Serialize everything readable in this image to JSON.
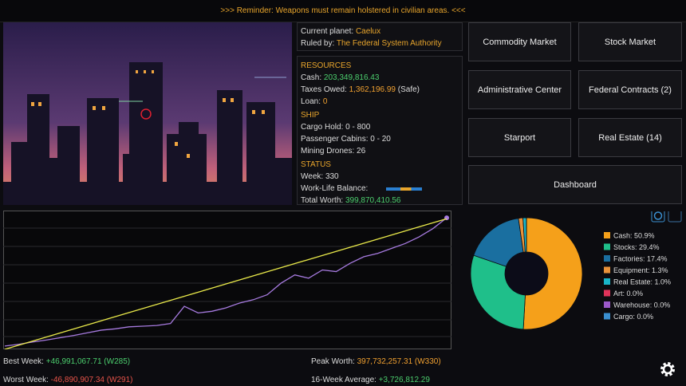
{
  "banner": ">>>  Reminder: Weapons must remain holstered in civilian areas.  <<<",
  "location": {
    "planet_label": "Current planet:",
    "planet": "Caelux",
    "ruler_label": "Ruled by:",
    "ruler": "The Federal System Authority"
  },
  "resources": {
    "title": "RESOURCES",
    "cash_label": "Cash:",
    "cash": "203,349,816.43",
    "taxes_label": "Taxes Owed:",
    "taxes": "1,362,196.99",
    "taxes_status": "(Safe)",
    "loan_label": "Loan:",
    "loan": "0"
  },
  "ship": {
    "title": "SHIP",
    "items": [
      "Cargo Hold: 0 - 800",
      "Passenger Cabins: 0 - 20",
      "Mining Drones: 26"
    ]
  },
  "status": {
    "title": "STATUS",
    "week": "Week: 330",
    "balance_label": "Work-Life Balance:",
    "worth_label": "Total Worth:",
    "worth": "399,870,410.56"
  },
  "buttons": [
    "Commodity Market",
    "Stock Market",
    "Administrative Center",
    "Federal Contracts (2)",
    "Starport",
    "Real Estate (14)",
    "Dashboard"
  ],
  "stats": {
    "best_label": "Best Week:",
    "best": "+46,991,067.71 (W285)",
    "worst_label": "Worst Week:",
    "worst": "-46,890,907.34 (W291)",
    "peak_label": "Peak Worth:",
    "peak": "397,732,257.31 (W330)",
    "avg_label": "16-Week Average:",
    "avg": "+3,726,812.29"
  },
  "chart_data": [
    {
      "type": "line",
      "xlim": [
        10,
        330
      ],
      "ylim": [
        0,
        410
      ],
      "x": [
        10,
        20,
        30,
        40,
        50,
        60,
        70,
        80,
        90,
        100,
        110,
        120,
        130,
        140,
        150,
        160,
        170,
        180,
        190,
        200,
        210,
        220,
        230,
        240,
        250,
        260,
        270,
        280,
        290,
        300,
        310,
        320,
        330
      ],
      "series": [
        {
          "color": "#a77be0",
          "values": [
            10,
            15,
            22,
            28,
            35,
            42,
            50,
            58,
            62,
            68,
            70,
            72,
            78,
            130,
            110,
            115,
            125,
            140,
            150,
            165,
            200,
            225,
            215,
            240,
            235,
            260,
            280,
            290,
            305,
            320,
            340,
            365,
            397.73
          ]
        },
        {
          "color": "#e8e84a",
          "x": [
            10,
            330
          ],
          "values": [
            0,
            395
          ]
        }
      ]
    },
    {
      "type": "pie",
      "categories": [
        "Cash",
        "Stocks",
        "Factories",
        "Equipment",
        "Real Estate",
        "Art",
        "Warehouse",
        "Cargo"
      ],
      "values": [
        50.9,
        29.4,
        17.4,
        1.3,
        1.0,
        0.0,
        0.0,
        0.0
      ],
      "value_labels": [
        "Cash: 50.9%",
        "Stocks: 29.4%",
        "Factories: 17.4%",
        "Equipment: 1.3%",
        "Real Estate: 1.0%",
        "Art: 0.0%",
        "Warehouse: 0.0%",
        "Cargo: 0.0%"
      ],
      "colors": [
        "#f5a01a",
        "#1fbf8a",
        "#1a6fa0",
        "#e8923a",
        "#19b5c8",
        "#e0335a",
        "#9b59c9",
        "#3a8fd0"
      ]
    }
  ]
}
